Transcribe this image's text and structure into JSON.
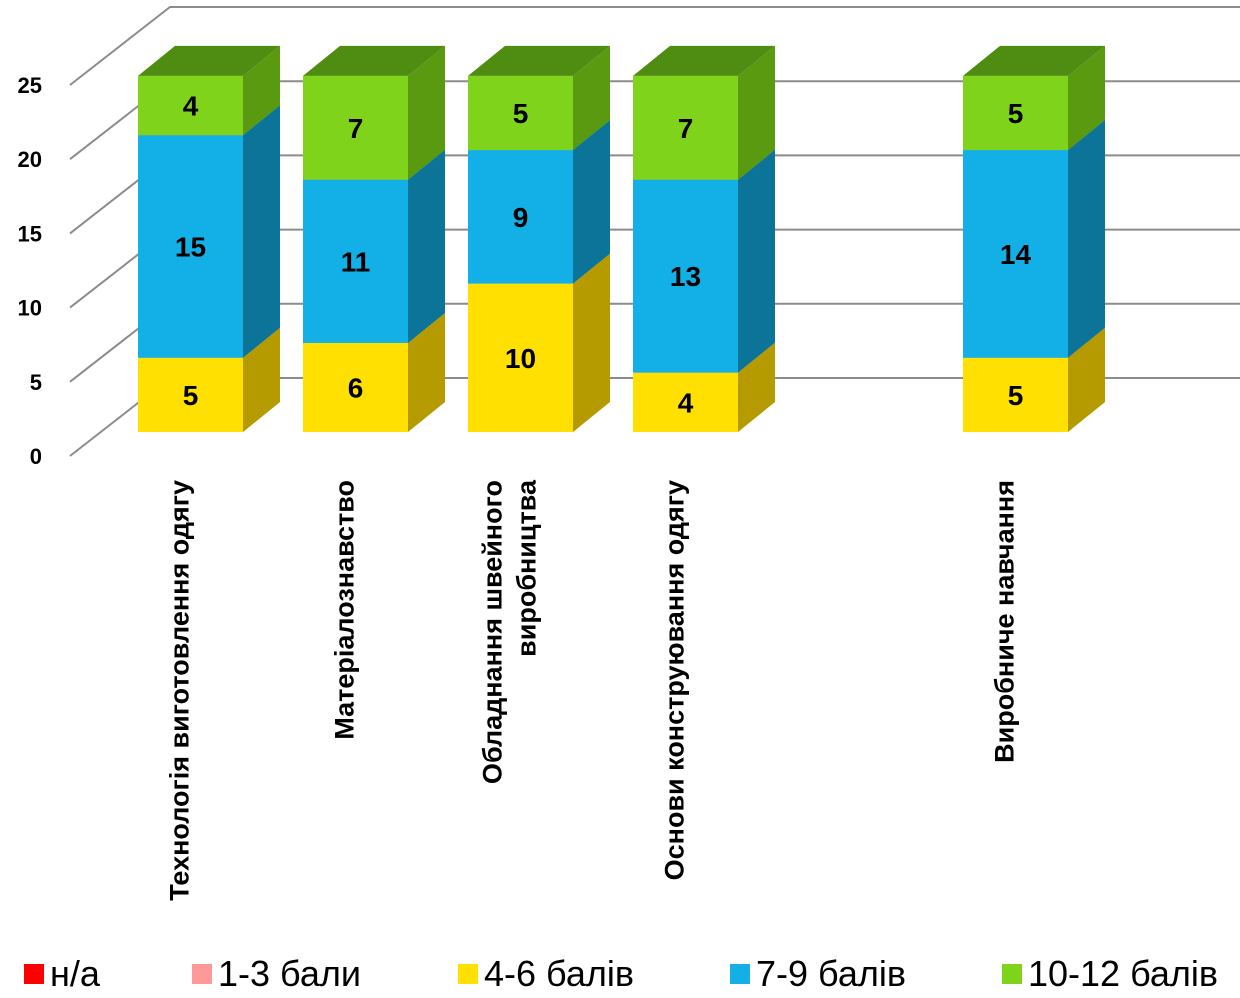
{
  "chart_data": {
    "type": "bar",
    "stacked": true,
    "three_d": true,
    "categories": [
      "Технологія виготовлення одягу",
      "Матеріалознавство",
      "Обладнання швейного виробництва",
      "Основи конструювання одягу",
      "",
      "Виробниче навчання"
    ],
    "category_lines": [
      [
        "Технологія виготовлення одягу"
      ],
      [
        "Матеріалознавство"
      ],
      [
        "Обладнання швейного",
        "виробництва"
      ],
      [
        "Основи конструювання одягу"
      ],
      [],
      [
        "Виробниче навчання"
      ]
    ],
    "series": [
      {
        "name": "н/а",
        "values": [
          0,
          0,
          0,
          0,
          0,
          0
        ],
        "color": "#ff0000",
        "side_color": "#b30000",
        "top_color": "#ff4d4d"
      },
      {
        "name": "1-3 бали",
        "values": [
          0,
          0,
          0,
          0,
          0,
          0
        ],
        "color": "#ff9999",
        "side_color": "#c06a6a",
        "top_color": "#ffbbbb"
      },
      {
        "name": "4-6 балів",
        "values": [
          5,
          6,
          10,
          4,
          0,
          5
        ],
        "color": "#ffe000",
        "side_color": "#b59a00",
        "top_color": "#d9bf00"
      },
      {
        "name": "7-9 балів",
        "values": [
          15,
          11,
          9,
          13,
          0,
          14
        ],
        "color": "#13b0e8",
        "side_color": "#0d7499",
        "top_color": "#0e86b0"
      },
      {
        "name": "10-12 балів",
        "values": [
          4,
          7,
          5,
          7,
          0,
          5
        ],
        "color": "#7fd41b",
        "side_color": "#5a9a10",
        "top_color": "#4f8c12"
      }
    ],
    "ylim": [
      0,
      25
    ],
    "yticks": [
      0,
      5,
      10,
      15,
      20,
      25
    ],
    "grid": true,
    "legend_position": "bottom",
    "title": "",
    "xlabel": "",
    "ylabel": ""
  },
  "legend": {
    "items": [
      {
        "label": "н/а",
        "color": "#ff0000"
      },
      {
        "label": "1-3 бали",
        "color": "#ff9999"
      },
      {
        "label": "4-6 балів",
        "color": "#ffe000"
      },
      {
        "label": "7-9 балів",
        "color": "#13b0e8"
      },
      {
        "label": "10-12 балів",
        "color": "#7fd41b"
      }
    ]
  }
}
